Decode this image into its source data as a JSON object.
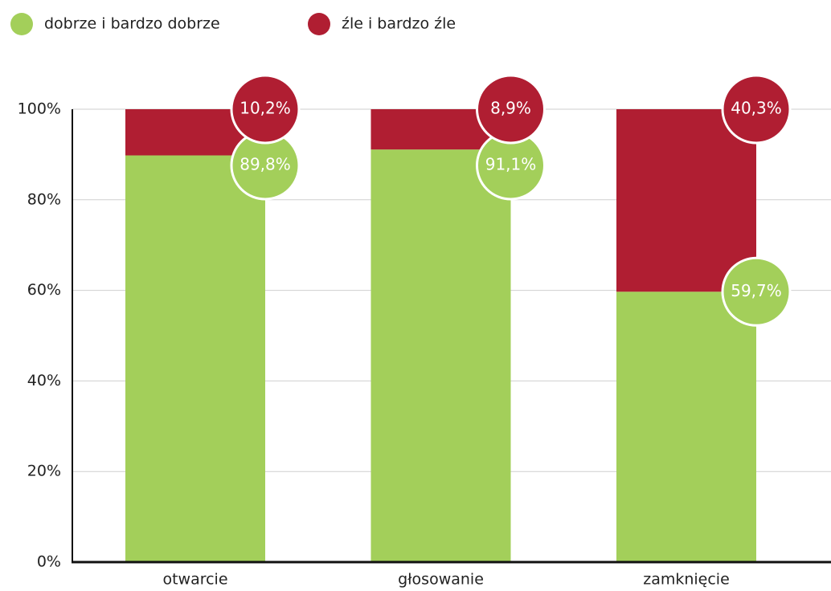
{
  "chart_data": {
    "type": "stacked_bar",
    "categories": [
      "otwarcie",
      "głosowanie",
      "zamknięcie"
    ],
    "series": [
      {
        "name": "dobrze i bardzo dobrze",
        "color": "#a3cf5a",
        "values": [
          89.8,
          91.1,
          59.7
        ],
        "value_labels": [
          "89,8%",
          "91,1%",
          "59,7%"
        ]
      },
      {
        "name": "źle i bardzo źle",
        "color": "#b01e32",
        "values": [
          10.2,
          8.9,
          40.3
        ],
        "value_labels": [
          "10,2%",
          "8,9%",
          "40,3%"
        ]
      }
    ],
    "ylim": [
      0,
      100
    ],
    "yticks": [
      {
        "value": 0,
        "label": "0%"
      },
      {
        "value": 20,
        "label": "20%"
      },
      {
        "value": 40,
        "label": "40%"
      },
      {
        "value": 60,
        "label": "60%"
      },
      {
        "value": 80,
        "label": "80%"
      },
      {
        "value": 100,
        "label": "100%"
      }
    ],
    "grid": true
  }
}
